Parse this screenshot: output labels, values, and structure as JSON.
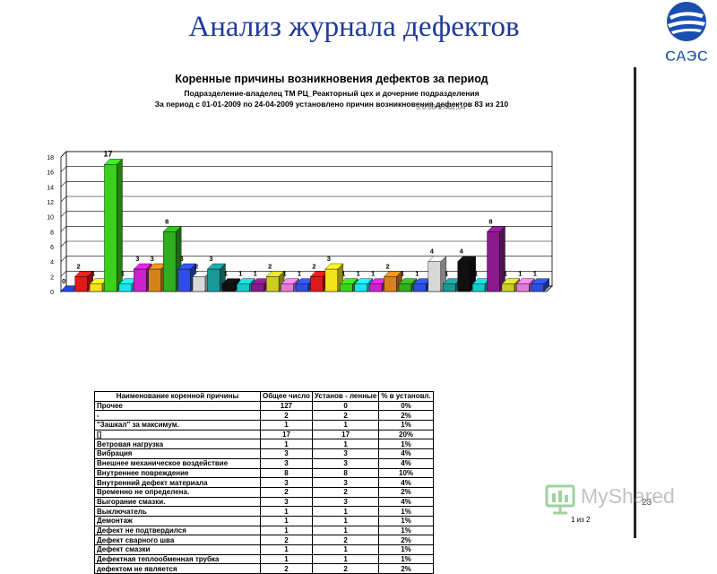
{
  "slide": {
    "title": "Анализ журнала дефектов",
    "page_number": "23"
  },
  "logo": {
    "text": "САЭС",
    "color": "#1a4fb0"
  },
  "report": {
    "title": "Коренные причины возникновения дефектов за период",
    "subtitle1": "Подразделение-владелец ТМ РЦ_Реакторный цех и дочерние подразделения",
    "subtitle2": "За период с 01-01-2009 по 24-04-2009 установлено причин возникновения дефектов 83 из 210",
    "overlap_text": "5.0.08   9.002,04",
    "pager": "1 из 2"
  },
  "watermark": {
    "text": "MyShared"
  },
  "chart_data": {
    "type": "bar",
    "ylim": [
      0,
      18
    ],
    "yticks": [
      0,
      2,
      4,
      6,
      8,
      10,
      12,
      14,
      16,
      18
    ],
    "values": [
      0,
      2,
      1,
      17,
      1,
      3,
      3,
      8,
      3,
      2,
      3,
      1,
      1,
      1,
      2,
      1,
      1,
      2,
      3,
      1,
      1,
      1,
      2,
      1,
      1,
      4,
      1,
      4,
      1,
      8,
      1,
      1,
      1
    ],
    "colors": [
      "#1e3fd0",
      "#e01818",
      "#f4e21a",
      "#3ad11b",
      "#18e4ee",
      "#cc22cc",
      "#d68418",
      "#2fae1e",
      "#2d4fe0",
      "#d8d8d8",
      "#1a9898",
      "#101010",
      "#14c9c9",
      "#8a1a8a",
      "#cccc22",
      "#e27ad8",
      "#2d4fe0",
      "#e01818",
      "#f4e21a",
      "#3ad11b",
      "#18e4ee",
      "#cc22cc",
      "#d68418",
      "#2fae1e",
      "#2d4fe0",
      "#d8d8d8",
      "#1a9898",
      "#101010",
      "#14c9c9",
      "#8a1a8a",
      "#cccc22",
      "#e27ad8",
      "#2d4fe0"
    ]
  },
  "table": {
    "headers": [
      "Наименование коренной причины",
      "Общее число",
      "Установ - ленные",
      "% в установл."
    ],
    "rows": [
      [
        "Прочее",
        "127",
        "0",
        "0%"
      ],
      [
        "-",
        "2",
        "2",
        "2%"
      ],
      [
        "\"Зашкал\" за максимум.",
        "1",
        "1",
        "1%"
      ],
      [
        "[]",
        "17",
        "17",
        "20%"
      ],
      [
        "Ветровая нагрузка",
        "1",
        "1",
        "1%"
      ],
      [
        "Вибрация",
        "3",
        "3",
        "4%"
      ],
      [
        "Внешнее механическое воздействие",
        "3",
        "3",
        "4%"
      ],
      [
        "Внутреннее повреждение",
        "8",
        "8",
        "10%"
      ],
      [
        "Внутренний дефект материала",
        "3",
        "3",
        "4%"
      ],
      [
        "Временно не определена.",
        "2",
        "2",
        "2%"
      ],
      [
        "Выгорание смазки.",
        "3",
        "3",
        "4%"
      ],
      [
        "Выключатель",
        "1",
        "1",
        "1%"
      ],
      [
        "Демонтаж",
        "1",
        "1",
        "1%"
      ],
      [
        "Дефект не подтвердился",
        "1",
        "1",
        "1%"
      ],
      [
        "Дефект сварного шва",
        "2",
        "2",
        "2%"
      ],
      [
        "Дефект смазки",
        "1",
        "1",
        "1%"
      ],
      [
        "Дефектная теплообменная трубка",
        "1",
        "1",
        "1%"
      ],
      [
        "дефектом не является",
        "2",
        "2",
        "2%"
      ]
    ]
  }
}
